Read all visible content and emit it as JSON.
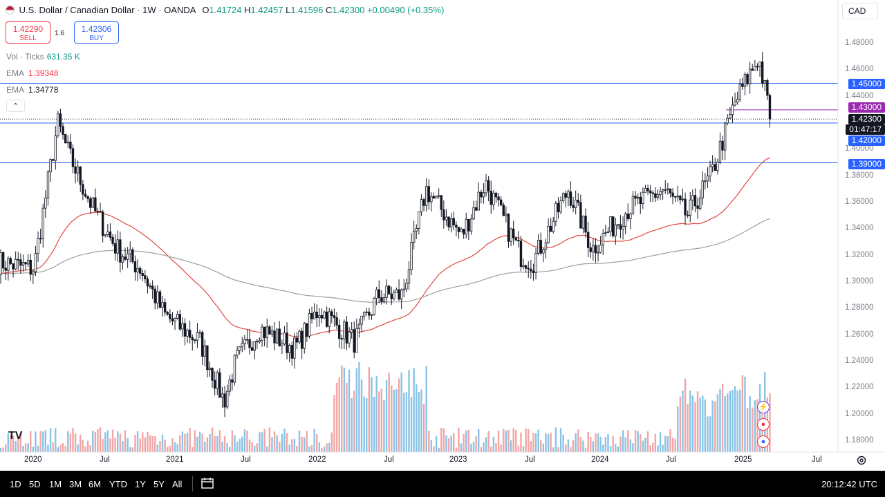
{
  "header": {
    "title": "U.S. Dollar / Canadian Dollar",
    "interval": "1W",
    "exchange": "OANDA",
    "ohlc": {
      "o_label": "O",
      "o": "1.41724",
      "h_label": "H",
      "h": "1.42457",
      "l_label": "L",
      "l": "1.41596",
      "c_label": "C",
      "c": "1.42300",
      "change": "+0.00490 (+0.35%)"
    }
  },
  "trade": {
    "sell_price": "1.42290",
    "sell_label": "SELL",
    "spread": "1.6",
    "buy_price": "1.42306",
    "buy_label": "BUY"
  },
  "legend": {
    "vol_label": "Vol · Ticks",
    "vol_value": "631.35 K",
    "ema1_label": "EMA",
    "ema1_value": "1.39348",
    "ema2_label": "EMA",
    "ema2_value": "1.34778"
  },
  "currency_button": "CAD",
  "price_labels": {
    "l1": "1.45000",
    "l2": "1.43000",
    "last": "1.42300",
    "countdown": "01:47:17",
    "l3": "1.42000",
    "l4": "1.39000"
  },
  "price_axis": [
    "1.48000",
    "1.46000",
    "1.44000",
    "1.40000",
    "1.38000",
    "1.36000",
    "1.34000",
    "1.32000",
    "1.30000",
    "1.28000",
    "1.26000",
    "1.24000",
    "1.22000",
    "1.20000",
    "1.18000"
  ],
  "time_axis": [
    "2020",
    "Jul",
    "2021",
    "Jul",
    "2022",
    "Jul",
    "2023",
    "Jul",
    "2024",
    "Jul",
    "2025",
    "Jul"
  ],
  "ranges": [
    "1D",
    "5D",
    "1M",
    "3M",
    "6M",
    "YTD",
    "1Y",
    "5Y",
    "All"
  ],
  "clock": "20:12:42 UTC",
  "logo": "TV",
  "colors": {
    "up": "#131722",
    "down": "#131722",
    "ema_fast": "#e0473e",
    "ema_slow": "#9e9e9e",
    "hline": "#2962ff",
    "resistance_purple": "#9c27b0",
    "vol_up": "#89c3e6",
    "vol_down": "#f2a5a5"
  },
  "chart_data": {
    "type": "candlestick",
    "interval": "1W",
    "ylim": [
      1.175,
      1.485
    ],
    "x_start": "2019-10",
    "x_end": "2025-10",
    "horizontal_levels": [
      1.45,
      1.43,
      1.42,
      1.39
    ],
    "last_price": 1.423,
    "ema_fast_last": 1.39348,
    "ema_slow_last": 1.34778,
    "volume_last": "631.35 K",
    "close_path": [
      {
        "date": "2019-10",
        "close": 1.315
      },
      {
        "date": "2020-01",
        "close": 1.31
      },
      {
        "date": "2020-03",
        "close": 1.42
      },
      {
        "date": "2020-04",
        "close": 1.395
      },
      {
        "date": "2020-06",
        "close": 1.355
      },
      {
        "date": "2020-08",
        "close": 1.325
      },
      {
        "date": "2020-10",
        "close": 1.31
      },
      {
        "date": "2020-12",
        "close": 1.275
      },
      {
        "date": "2021-03",
        "close": 1.255
      },
      {
        "date": "2021-05",
        "close": 1.21
      },
      {
        "date": "2021-06",
        "close": 1.24
      },
      {
        "date": "2021-08",
        "close": 1.265
      },
      {
        "date": "2021-11",
        "close": 1.25
      },
      {
        "date": "2022-01",
        "close": 1.28
      },
      {
        "date": "2022-04",
        "close": 1.255
      },
      {
        "date": "2022-06",
        "close": 1.29
      },
      {
        "date": "2022-08",
        "close": 1.29
      },
      {
        "date": "2022-10",
        "close": 1.37
      },
      {
        "date": "2023-01",
        "close": 1.335
      },
      {
        "date": "2023-03",
        "close": 1.375
      },
      {
        "date": "2023-06",
        "close": 1.32
      },
      {
        "date": "2023-07",
        "close": 1.315
      },
      {
        "date": "2023-10",
        "close": 1.37
      },
      {
        "date": "2023-12",
        "close": 1.325
      },
      {
        "date": "2024-03",
        "close": 1.355
      },
      {
        "date": "2024-06",
        "close": 1.37
      },
      {
        "date": "2024-08",
        "close": 1.35
      },
      {
        "date": "2024-10",
        "close": 1.38
      },
      {
        "date": "2024-12",
        "close": 1.435
      },
      {
        "date": "2025-02",
        "close": 1.47
      },
      {
        "date": "2025-03",
        "close": 1.423
      }
    ]
  }
}
